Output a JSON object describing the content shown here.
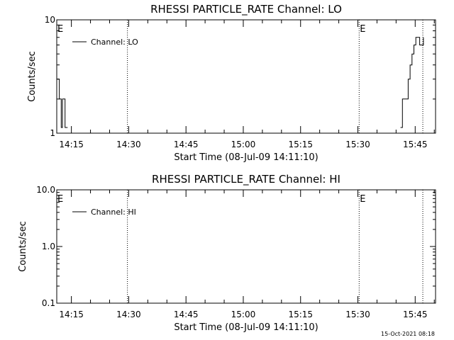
{
  "chart_data": [
    {
      "type": "line",
      "title": "RHESSI PARTICLE_RATE Channel: LO",
      "xlabel": "Start Time (08-Jul-09 14:11:10)",
      "ylabel": "Counts/sec",
      "y_scale": "log",
      "ylim": [
        1,
        10
      ],
      "y_tick_labels": [
        "1",
        "10"
      ],
      "xlim": [
        "14:11:10",
        "15:50:20"
      ],
      "x_tick_labels": [
        "14:15",
        "14:30",
        "14:45",
        "15:00",
        "15:15",
        "15:30",
        "15:45"
      ],
      "grid": false,
      "legend": {
        "placement": "top-left",
        "entries": [
          "Channel: LO"
        ]
      },
      "eclipse_markers": [
        {
          "label": "E",
          "time": "14:11:10"
        },
        {
          "label": "E",
          "time": "15:30:20"
        }
      ],
      "vertical_dotted_lines": [
        "14:29:40",
        "15:30:20",
        "15:47:00"
      ],
      "series": [
        {
          "name": "Channel: LO",
          "x": [
            "14:11:10",
            "14:11:30",
            "14:11:50",
            "14:12:20",
            "14:12:40",
            "14:13:00",
            "14:13:20",
            "14:13:40",
            "14:14:00",
            "15:41:10",
            "15:41:40",
            "15:42:10",
            "15:42:40",
            "15:43:10",
            "15:43:40",
            "15:44:10",
            "15:44:40",
            "15:45:10",
            "15:45:40",
            "15:46:10",
            "15:46:40",
            "15:47:10"
          ],
          "y": [
            3,
            3,
            2,
            1,
            2,
            2,
            1,
            1,
            1,
            1,
            2,
            2,
            2,
            3,
            4,
            5,
            6,
            7,
            7,
            6,
            6,
            7
          ]
        }
      ]
    },
    {
      "type": "line",
      "title": "RHESSI PARTICLE_RATE Channel: HI",
      "xlabel": "Start Time (08-Jul-09 14:11:10)",
      "ylabel": "Counts/sec",
      "y_scale": "log",
      "ylim": [
        0.1,
        10
      ],
      "y_tick_labels": [
        "0.1",
        "1.0",
        "10.0"
      ],
      "xlim": [
        "14:11:10",
        "15:50:20"
      ],
      "x_tick_labels": [
        "14:15",
        "14:30",
        "14:45",
        "15:00",
        "15:15",
        "15:30",
        "15:45"
      ],
      "grid": false,
      "legend": {
        "placement": "top-left",
        "entries": [
          "Channel: HI"
        ]
      },
      "eclipse_markers": [
        {
          "label": "E",
          "time": "14:11:10"
        },
        {
          "label": "E",
          "time": "15:30:20"
        }
      ],
      "vertical_dotted_lines": [
        "14:29:40",
        "15:30:20",
        "15:47:00"
      ],
      "series": [
        {
          "name": "Channel: HI",
          "x": [],
          "y": []
        }
      ]
    }
  ],
  "footer": {
    "timestamp": "15-Oct-2021 08:18"
  }
}
